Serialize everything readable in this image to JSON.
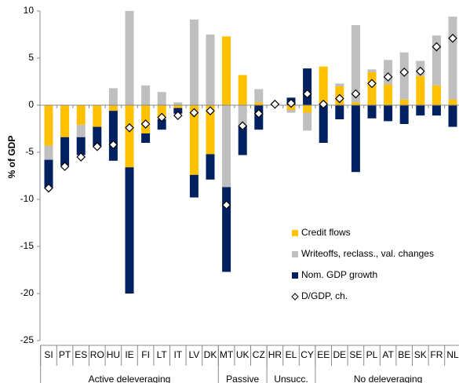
{
  "chart_data": {
    "type": "stacked_bar",
    "ylabel": "% of GDP",
    "categories": [
      "SI",
      "PT",
      "ES",
      "RO",
      "HU",
      "IE",
      "FI",
      "LT",
      "IT",
      "LV",
      "DK",
      "MT",
      "UK",
      "CZ",
      "HR",
      "EL",
      "CY",
      "EE",
      "DE",
      "SE",
      "PL",
      "AT",
      "BE",
      "SK",
      "FR",
      "NL"
    ],
    "groups": [
      {
        "label": "Active deleveraging",
        "size": 11
      },
      {
        "label": "Passive",
        "size": 3
      },
      {
        "label": "Unsucc.",
        "size": 3
      },
      {
        "label": "No deleveraging",
        "size": 9
      }
    ],
    "series": [
      {
        "name": "Credit flows",
        "color": "#ffc000",
        "values": [
          -4.3,
          -3.4,
          -2.1,
          -2.3,
          -0.6,
          -6.6,
          -3.0,
          -1.5,
          -0.3,
          -7.4,
          -5.2,
          7.3,
          3.2,
          0.3,
          0.1,
          -0.5,
          -0.8,
          4.1,
          2.0,
          0.3,
          3.5,
          2.2,
          0.6,
          3.1,
          2.1,
          0.6
        ]
      },
      {
        "name": "Writeoffs, reclass., val. changes",
        "color": "#bfbfbf",
        "values": [
          -1.5,
          0,
          -1.3,
          0,
          1.8,
          10,
          2.1,
          1.4,
          0.3,
          9.1,
          7.5,
          -8.7,
          -2.2,
          1.4,
          0.1,
          -0.3,
          -1.9,
          0,
          0.3,
          8.2,
          0.3,
          2.6,
          5.0,
          1.6,
          5.3,
          8.8
        ]
      },
      {
        "name": "Nom. GDP growth",
        "color": "#002060",
        "values": [
          -3.0,
          -3.0,
          -1.9,
          -2.1,
          -5.3,
          -13.4,
          -1.0,
          -1.1,
          -0.6,
          -2.4,
          -2.7,
          -9.0,
          -3.1,
          -2.6,
          0,
          0.8,
          3.9,
          -4.0,
          -1.5,
          -7.1,
          -1.4,
          -1.7,
          -2.0,
          -1.1,
          -1.1,
          -2.3
        ]
      }
    ],
    "markers": {
      "name": "D/GDP, ch.",
      "values": [
        -8.8,
        -6.5,
        -5.5,
        -4.4,
        -4.2,
        -2.4,
        -2.0,
        -1.3,
        -1.1,
        -0.8,
        -0.6,
        -10.6,
        -2.2,
        -0.9,
        0.1,
        0.2,
        1.2,
        0.1,
        0.7,
        1.2,
        2.3,
        3.0,
        3.5,
        3.6,
        6.2,
        7.1
      ]
    },
    "ylim": [
      -25,
      10
    ],
    "yticks": [
      -25,
      -20,
      -15,
      -10,
      -5,
      0,
      5,
      10
    ],
    "legend": "lower right"
  }
}
